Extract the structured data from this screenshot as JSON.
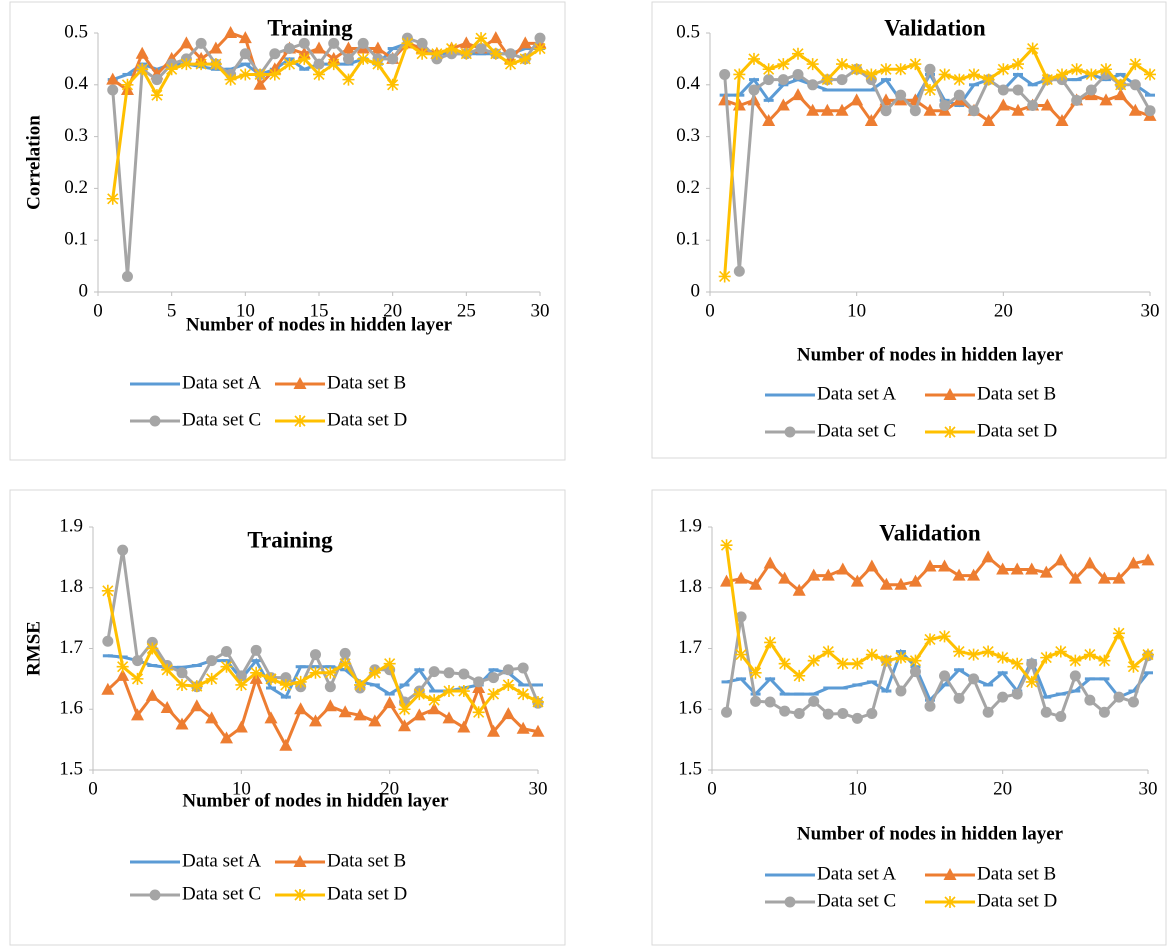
{
  "chart_data": [
    {
      "type": "line",
      "title": "Training",
      "xlabel": "Number of nodes in hidden layer",
      "ylabel": "Correlation",
      "x": [
        1,
        2,
        3,
        4,
        5,
        6,
        7,
        8,
        9,
        10,
        11,
        12,
        13,
        14,
        15,
        16,
        17,
        18,
        19,
        20,
        21,
        22,
        23,
        24,
        25,
        26,
        27,
        28,
        29,
        30
      ],
      "xlim": [
        0,
        30
      ],
      "xticks": [
        0,
        5,
        10,
        15,
        20,
        25,
        30
      ],
      "ylim": [
        0,
        0.5
      ],
      "yticks": [
        0,
        0.1,
        0.2,
        0.3,
        0.4,
        0.5
      ],
      "grid": false,
      "legend": "bottom",
      "series": [
        {
          "name": "Data set A",
          "color": "#5b9bd5",
          "marker": "dash",
          "values": [
            0.41,
            0.42,
            0.44,
            0.43,
            0.44,
            0.44,
            0.435,
            0.43,
            0.43,
            0.44,
            0.42,
            0.43,
            0.45,
            0.43,
            0.44,
            0.44,
            0.44,
            0.45,
            0.44,
            0.47,
            0.48,
            0.47,
            0.46,
            0.46,
            0.46,
            0.46,
            0.46,
            0.46,
            0.47,
            0.47
          ]
        },
        {
          "name": "Data set B",
          "color": "#ed7d31",
          "marker": "triangle",
          "values": [
            0.41,
            0.39,
            0.46,
            0.42,
            0.45,
            0.48,
            0.45,
            0.47,
            0.5,
            0.49,
            0.4,
            0.43,
            0.47,
            0.46,
            0.47,
            0.45,
            0.47,
            0.47,
            0.47,
            0.45,
            0.48,
            0.47,
            0.46,
            0.47,
            0.48,
            0.47,
            0.49,
            0.45,
            0.48,
            0.48
          ]
        },
        {
          "name": "Data set C",
          "color": "#a5a5a5",
          "marker": "circle",
          "values": [
            0.39,
            0.03,
            0.43,
            0.41,
            0.44,
            0.45,
            0.48,
            0.44,
            0.42,
            0.46,
            0.42,
            0.46,
            0.47,
            0.48,
            0.44,
            0.48,
            0.45,
            0.48,
            0.45,
            0.45,
            0.49,
            0.48,
            0.45,
            0.46,
            0.46,
            0.47,
            0.46,
            0.46,
            0.45,
            0.49
          ]
        },
        {
          "name": "Data set D",
          "color": "#ffc000",
          "marker": "star",
          "values": [
            0.18,
            0.4,
            0.43,
            0.38,
            0.43,
            0.44,
            0.44,
            0.44,
            0.41,
            0.42,
            0.42,
            0.42,
            0.44,
            0.45,
            0.42,
            0.44,
            0.41,
            0.45,
            0.44,
            0.4,
            0.48,
            0.46,
            0.46,
            0.47,
            0.46,
            0.49,
            0.46,
            0.44,
            0.45,
            0.47
          ]
        }
      ]
    },
    {
      "type": "line",
      "title": "Validation",
      "xlabel": "Number of nodes in hidden layer",
      "x": [
        1,
        2,
        3,
        4,
        5,
        6,
        7,
        8,
        9,
        10,
        11,
        12,
        13,
        14,
        15,
        16,
        17,
        18,
        19,
        20,
        21,
        22,
        23,
        24,
        25,
        26,
        27,
        28,
        29,
        30
      ],
      "xlim": [
        0,
        30
      ],
      "xticks": [
        0,
        10,
        20,
        30
      ],
      "ylim": [
        0,
        0.5
      ],
      "yticks": [
        0,
        0.1,
        0.2,
        0.3,
        0.4,
        0.5
      ],
      "grid": false,
      "legend": "bottom",
      "series": [
        {
          "name": "Data set A",
          "color": "#5b9bd5",
          "marker": "dash",
          "values": [
            0.38,
            0.38,
            0.41,
            0.37,
            0.4,
            0.41,
            0.4,
            0.39,
            0.39,
            0.39,
            0.39,
            0.41,
            0.37,
            0.37,
            0.42,
            0.37,
            0.36,
            0.4,
            0.41,
            0.39,
            0.42,
            0.4,
            0.41,
            0.41,
            0.41,
            0.42,
            0.41,
            0.42,
            0.4,
            0.38
          ]
        },
        {
          "name": "Data set B",
          "color": "#ed7d31",
          "marker": "triangle",
          "values": [
            0.37,
            0.36,
            0.37,
            0.33,
            0.36,
            0.38,
            0.35,
            0.35,
            0.35,
            0.37,
            0.33,
            0.37,
            0.37,
            0.37,
            0.35,
            0.35,
            0.37,
            0.35,
            0.33,
            0.36,
            0.35,
            0.36,
            0.36,
            0.33,
            0.37,
            0.38,
            0.37,
            0.38,
            0.35,
            0.34
          ]
        },
        {
          "name": "Data set C",
          "color": "#a5a5a5",
          "marker": "circle",
          "values": [
            0.42,
            0.04,
            0.39,
            0.41,
            0.41,
            0.42,
            0.4,
            0.41,
            0.41,
            0.43,
            0.41,
            0.35,
            0.38,
            0.35,
            0.43,
            0.36,
            0.38,
            0.35,
            0.41,
            0.39,
            0.39,
            0.36,
            0.41,
            0.41,
            0.37,
            0.39,
            0.42,
            0.4,
            0.4,
            0.35
          ]
        },
        {
          "name": "Data set D",
          "color": "#ffc000",
          "marker": "star",
          "values": [
            0.03,
            0.42,
            0.45,
            0.43,
            0.44,
            0.46,
            0.44,
            0.41,
            0.44,
            0.43,
            0.42,
            0.43,
            0.43,
            0.44,
            0.39,
            0.42,
            0.41,
            0.42,
            0.41,
            0.43,
            0.44,
            0.47,
            0.41,
            0.42,
            0.43,
            0.42,
            0.43,
            0.4,
            0.44,
            0.42
          ]
        }
      ]
    },
    {
      "type": "line",
      "title": "Training",
      "xlabel": "Number of nodes in hidden layer",
      "ylabel": "RMSE",
      "x": [
        1,
        2,
        3,
        4,
        5,
        6,
        7,
        8,
        9,
        10,
        11,
        12,
        13,
        14,
        15,
        16,
        17,
        18,
        19,
        20,
        21,
        22,
        23,
        24,
        25,
        26,
        27,
        28,
        29,
        30
      ],
      "xlim": [
        0,
        30
      ],
      "xticks": [
        0,
        10,
        20,
        30
      ],
      "ylim": [
        1.5,
        1.9
      ],
      "yticks": [
        1.5,
        1.6,
        1.7,
        1.8,
        1.9
      ],
      "grid": false,
      "legend": "bottom",
      "series": [
        {
          "name": "Data set A",
          "color": "#5b9bd5",
          "marker": "dash",
          "values": [
            1.688,
            1.686,
            1.68,
            1.672,
            1.669,
            1.669,
            1.672,
            1.68,
            1.68,
            1.65,
            1.68,
            1.635,
            1.62,
            1.67,
            1.67,
            1.67,
            1.665,
            1.645,
            1.64,
            1.625,
            1.64,
            1.665,
            1.63,
            1.63,
            1.635,
            1.64,
            1.665,
            1.66,
            1.64,
            1.64
          ]
        },
        {
          "name": "Data set B",
          "color": "#ed7d31",
          "marker": "triangle",
          "values": [
            1.632,
            1.655,
            1.59,
            1.622,
            1.602,
            1.575,
            1.605,
            1.585,
            1.552,
            1.57,
            1.65,
            1.585,
            1.54,
            1.6,
            1.58,
            1.605,
            1.595,
            1.59,
            1.58,
            1.61,
            1.572,
            1.59,
            1.6,
            1.585,
            1.57,
            1.635,
            1.563,
            1.592,
            1.568,
            1.563
          ]
        },
        {
          "name": "Data set C",
          "color": "#a5a5a5",
          "marker": "circle",
          "values": [
            1.712,
            1.862,
            1.68,
            1.71,
            1.672,
            1.66,
            1.637,
            1.68,
            1.695,
            1.655,
            1.697,
            1.652,
            1.652,
            1.637,
            1.69,
            1.637,
            1.692,
            1.635,
            1.665,
            1.665,
            1.612,
            1.63,
            1.662,
            1.66,
            1.658,
            1.645,
            1.652,
            1.665,
            1.668,
            1.61
          ]
        },
        {
          "name": "Data set D",
          "color": "#ffc000",
          "marker": "star",
          "values": [
            1.795,
            1.67,
            1.65,
            1.7,
            1.665,
            1.64,
            1.638,
            1.65,
            1.67,
            1.64,
            1.66,
            1.65,
            1.64,
            1.645,
            1.66,
            1.66,
            1.675,
            1.64,
            1.66,
            1.675,
            1.6,
            1.625,
            1.615,
            1.63,
            1.63,
            1.595,
            1.625,
            1.64,
            1.625,
            1.612
          ]
        }
      ]
    },
    {
      "type": "line",
      "title": "Validation",
      "xlabel": "Number of nodes in hidden layer",
      "x": [
        1,
        2,
        3,
        4,
        5,
        6,
        7,
        8,
        9,
        10,
        11,
        12,
        13,
        14,
        15,
        16,
        17,
        18,
        19,
        20,
        21,
        22,
        23,
        24,
        25,
        26,
        27,
        28,
        29,
        30
      ],
      "xlim": [
        0,
        30
      ],
      "xticks": [
        0,
        10,
        20,
        30
      ],
      "ylim": [
        1.5,
        1.9
      ],
      "yticks": [
        1.5,
        1.6,
        1.7,
        1.8,
        1.9
      ],
      "grid": false,
      "legend": "bottom",
      "series": [
        {
          "name": "Data set A",
          "color": "#5b9bd5",
          "marker": "dash",
          "values": [
            1.645,
            1.65,
            1.625,
            1.65,
            1.625,
            1.625,
            1.625,
            1.635,
            1.635,
            1.64,
            1.645,
            1.63,
            1.695,
            1.67,
            1.615,
            1.64,
            1.665,
            1.65,
            1.64,
            1.66,
            1.63,
            1.68,
            1.62,
            1.625,
            1.63,
            1.65,
            1.65,
            1.62,
            1.63,
            1.66
          ]
        },
        {
          "name": "Data set B",
          "color": "#ed7d31",
          "marker": "triangle",
          "values": [
            1.81,
            1.815,
            1.805,
            1.84,
            1.815,
            1.795,
            1.82,
            1.82,
            1.83,
            1.81,
            1.835,
            1.805,
            1.805,
            1.81,
            1.835,
            1.835,
            1.82,
            1.82,
            1.85,
            1.83,
            1.83,
            1.83,
            1.825,
            1.845,
            1.815,
            1.84,
            1.815,
            1.815,
            1.84,
            1.845
          ]
        },
        {
          "name": "Data set C",
          "color": "#a5a5a5",
          "marker": "circle",
          "values": [
            1.595,
            1.752,
            1.613,
            1.612,
            1.597,
            1.593,
            1.613,
            1.592,
            1.593,
            1.585,
            1.593,
            1.68,
            1.63,
            1.662,
            1.605,
            1.655,
            1.618,
            1.65,
            1.595,
            1.62,
            1.625,
            1.675,
            1.595,
            1.588,
            1.655,
            1.615,
            1.595,
            1.62,
            1.612,
            1.688
          ]
        },
        {
          "name": "Data set D",
          "color": "#ffc000",
          "marker": "star",
          "values": [
            1.87,
            1.69,
            1.66,
            1.71,
            1.675,
            1.655,
            1.68,
            1.695,
            1.675,
            1.675,
            1.69,
            1.68,
            1.685,
            1.68,
            1.715,
            1.72,
            1.695,
            1.69,
            1.695,
            1.685,
            1.675,
            1.645,
            1.685,
            1.695,
            1.68,
            1.69,
            1.68,
            1.725,
            1.67,
            1.69
          ]
        }
      ]
    }
  ]
}
